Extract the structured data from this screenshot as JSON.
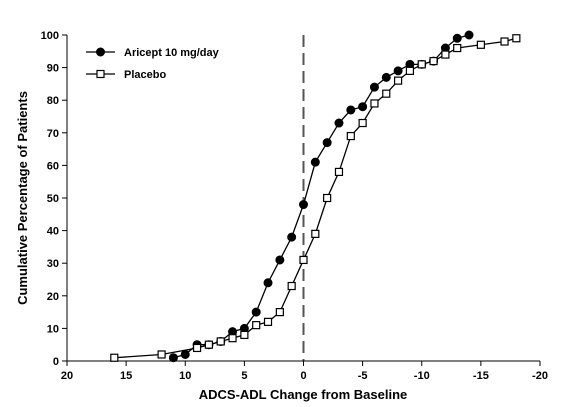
{
  "chart_data": {
    "type": "line",
    "title": "",
    "xlabel": "ADCS-ADL Change from Baseline",
    "ylabel": "Cumulative Percentage of Patients",
    "xlim": [
      20,
      -20
    ],
    "ylim": [
      0,
      100
    ],
    "x_ticks": [
      20,
      15,
      10,
      5,
      0,
      -5,
      -10,
      -15,
      -20
    ],
    "y_ticks": [
      0,
      10,
      20,
      30,
      40,
      50,
      60,
      70,
      80,
      90,
      100
    ],
    "x_tick_labels": [
      "20",
      "15",
      "10",
      "5",
      "0",
      "-5",
      "-10",
      "-15",
      "-20"
    ],
    "y_tick_labels": [
      "0",
      "10",
      "20",
      "30",
      "40",
      "50",
      "60",
      "70",
      "80",
      "90",
      "100"
    ],
    "x_axis_reversed": true,
    "grid": false,
    "reference_line": {
      "x": 0,
      "style": "dashed",
      "color": "#555555"
    },
    "legend_position": "top-left",
    "series": [
      {
        "name": "Aricept 10 mg/day",
        "marker": "filled-circle",
        "color": "#000000",
        "x": [
          11,
          10,
          9,
          8,
          7,
          6,
          5,
          4,
          3,
          2,
          1,
          0,
          -1,
          -2,
          -3,
          -4,
          -5,
          -6,
          -7,
          -8,
          -9,
          -10,
          -11,
          -12,
          -13,
          -14
        ],
        "y": [
          1,
          2,
          5,
          5,
          6,
          9,
          10,
          15,
          24,
          31,
          38,
          48,
          61,
          67,
          73,
          77,
          78,
          84,
          87,
          89,
          91,
          91,
          92,
          96,
          99,
          100
        ]
      },
      {
        "name": "Placebo",
        "marker": "open-square",
        "color": "#000000",
        "x": [
          16,
          12,
          9,
          8,
          7,
          6,
          5,
          4,
          3,
          2,
          1,
          0,
          -1,
          -2,
          -3,
          -4,
          -5,
          -6,
          -7,
          -8,
          -9,
          -10,
          -11,
          -12,
          -13,
          -15,
          -17,
          -18
        ],
        "y": [
          1,
          2,
          4,
          5,
          6,
          7,
          8,
          11,
          12,
          15,
          23,
          31,
          39,
          50,
          58,
          69,
          73,
          79,
          82,
          86,
          89,
          91,
          92,
          94,
          96,
          97,
          98,
          99
        ]
      }
    ]
  },
  "colors": {
    "axis": "#000000",
    "reference_line": "#555555",
    "marker_fill_open": "#ffffff",
    "marker_fill_filled": "#000000"
  }
}
